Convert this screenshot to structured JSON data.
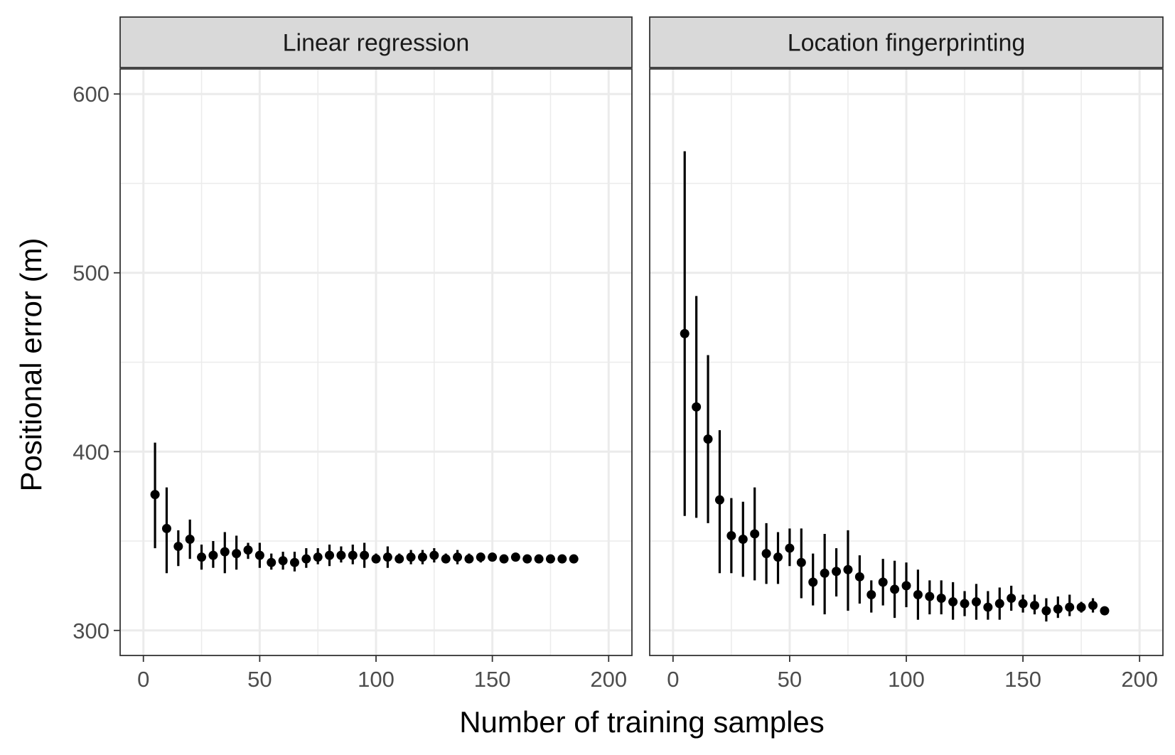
{
  "chart_data": {
    "type": "scatter",
    "xlabel": "Number of training samples",
    "ylabel": "Positional error (m)",
    "xlim": [
      -10,
      210
    ],
    "ylim": [
      286,
      614
    ],
    "x_ticks": [
      0,
      50,
      100,
      150,
      200
    ],
    "y_ticks": [
      300,
      400,
      500,
      600
    ],
    "grid": true,
    "colors": {
      "point": "#000000",
      "grid": "#ebebeb",
      "strip_fill": "#d9d9d9",
      "border": "#333333"
    },
    "panels": [
      {
        "label": "Linear regression",
        "x": [
          5,
          10,
          15,
          20,
          25,
          30,
          35,
          40,
          45,
          50,
          55,
          60,
          65,
          70,
          75,
          80,
          85,
          90,
          95,
          100,
          105,
          110,
          115,
          120,
          125,
          130,
          135,
          140,
          145,
          150,
          155,
          160,
          165,
          170,
          175,
          180,
          185
        ],
        "y": [
          376,
          357,
          347,
          351,
          341,
          342,
          344,
          343,
          345,
          342,
          338,
          339,
          338,
          340,
          341,
          342,
          342,
          342,
          342,
          340,
          341,
          340,
          341,
          341,
          342,
          340,
          341,
          340,
          341,
          341,
          340,
          341,
          340,
          340,
          340,
          340,
          340
        ],
        "ymin": [
          346,
          332,
          336,
          340,
          334,
          335,
          332,
          334,
          340,
          335,
          334,
          334,
          333,
          335,
          337,
          336,
          338,
          337,
          335,
          338,
          335,
          338,
          337,
          337,
          338,
          338,
          337,
          338,
          338,
          339,
          339,
          339,
          339,
          339,
          339,
          339,
          339
        ],
        "ymax": [
          405,
          380,
          356,
          362,
          348,
          350,
          355,
          353,
          349,
          349,
          343,
          344,
          344,
          346,
          346,
          348,
          347,
          348,
          349,
          343,
          347,
          343,
          345,
          345,
          346,
          343,
          345,
          343,
          343,
          343,
          342,
          342,
          341,
          341,
          341,
          341,
          341
        ]
      },
      {
        "label": "Location fingerprinting",
        "x": [
          5,
          10,
          15,
          20,
          25,
          30,
          35,
          40,
          45,
          50,
          55,
          60,
          65,
          70,
          75,
          80,
          85,
          90,
          95,
          100,
          105,
          110,
          115,
          120,
          125,
          130,
          135,
          140,
          145,
          150,
          155,
          160,
          165,
          170,
          175,
          180,
          185
        ],
        "y": [
          466,
          425,
          407,
          373,
          353,
          351,
          354,
          343,
          341,
          346,
          338,
          327,
          332,
          333,
          334,
          330,
          320,
          327,
          323,
          325,
          320,
          319,
          318,
          316,
          315,
          316,
          313,
          315,
          318,
          315,
          314,
          311,
          312,
          313,
          313,
          314,
          311
        ],
        "ymin": [
          364,
          363,
          360,
          332,
          332,
          330,
          328,
          326,
          326,
          336,
          318,
          314,
          309,
          319,
          311,
          315,
          310,
          314,
          307,
          313,
          306,
          309,
          309,
          306,
          308,
          306,
          306,
          306,
          311,
          310,
          309,
          305,
          307,
          308,
          310,
          310,
          310
        ],
        "ymax": [
          568,
          487,
          454,
          412,
          374,
          372,
          380,
          360,
          355,
          357,
          357,
          343,
          354,
          346,
          356,
          342,
          328,
          340,
          339,
          338,
          334,
          328,
          328,
          327,
          322,
          326,
          322,
          324,
          325,
          320,
          320,
          318,
          319,
          320,
          316,
          318,
          312
        ]
      }
    ]
  }
}
